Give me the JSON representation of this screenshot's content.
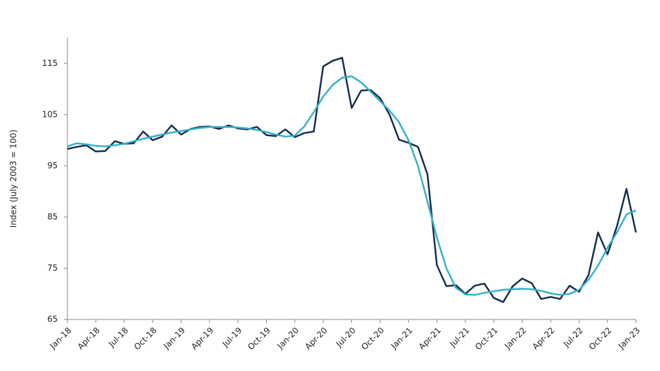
{
  "chart_data": {
    "type": "line",
    "ylabel": "Index (July 2003 = 100)",
    "categories": [
      "Jan-18",
      null,
      null,
      "Apr-18",
      null,
      null,
      "Jul-18",
      null,
      null,
      "Oct-18",
      null,
      null,
      "Jan-19",
      null,
      null,
      "Apr-19",
      null,
      null,
      "Jul-19",
      null,
      null,
      "Oct-19",
      null,
      null,
      "Jan-20",
      null,
      null,
      "Apr-20",
      null,
      null,
      "Jul-20",
      null,
      null,
      "Oct-20",
      null,
      null,
      "Jan-21",
      null,
      null,
      "Apr-21",
      null,
      null,
      "Jul-21",
      null,
      null,
      "Oct-21",
      null,
      null,
      "Jan-22",
      null,
      null,
      "Apr-22",
      null,
      null,
      "Jul-22",
      null,
      null,
      "Oct-22",
      null,
      null,
      "Jan-23"
    ],
    "series": [
      {
        "color": "#142d4c",
        "values": [
          98.3,
          98.7,
          99.0,
          97.8,
          97.9,
          99.8,
          99.3,
          99.4,
          101.7,
          100.0,
          100.7,
          102.9,
          101.1,
          102.2,
          102.6,
          102.7,
          102.2,
          102.9,
          102.3,
          102.1,
          102.6,
          101.0,
          100.8,
          102.1,
          100.6,
          101.4,
          101.7,
          114.4,
          115.5,
          116.1,
          106.3,
          109.7,
          109.8,
          108.2,
          105.0,
          100.1,
          99.5,
          98.7,
          93.3,
          75.6,
          71.5,
          71.7,
          70.0,
          71.6,
          72.0,
          69.2,
          68.4,
          71.5,
          73.0,
          72.1,
          69.0,
          69.4,
          69.0,
          71.6,
          70.4,
          73.7,
          82.0,
          77.7,
          83.2,
          90.5,
          82.0
        ]
      },
      {
        "color": "#35b0c8",
        "values": [
          98.8,
          99.4,
          99.2,
          98.9,
          98.8,
          99.0,
          99.3,
          99.8,
          100.3,
          100.7,
          101.1,
          101.5,
          101.8,
          102.1,
          102.4,
          102.6,
          102.6,
          102.6,
          102.5,
          102.3,
          102.0,
          101.6,
          101.1,
          100.7,
          100.9,
          102.7,
          105.5,
          108.5,
          110.8,
          112.2,
          112.5,
          111.3,
          109.5,
          107.6,
          105.8,
          103.5,
          100.0,
          95.0,
          88.0,
          81.0,
          75.0,
          71.2,
          69.9,
          69.8,
          70.2,
          70.5,
          70.8,
          70.9,
          71.0,
          70.9,
          70.6,
          70.1,
          69.8,
          70.0,
          70.8,
          72.8,
          75.5,
          79.0,
          82.0,
          85.5,
          86.3
        ]
      }
    ],
    "ylim": [
      65,
      120
    ],
    "yticks": [
      65,
      75,
      85,
      95,
      105,
      115
    ],
    "grid": false
  }
}
